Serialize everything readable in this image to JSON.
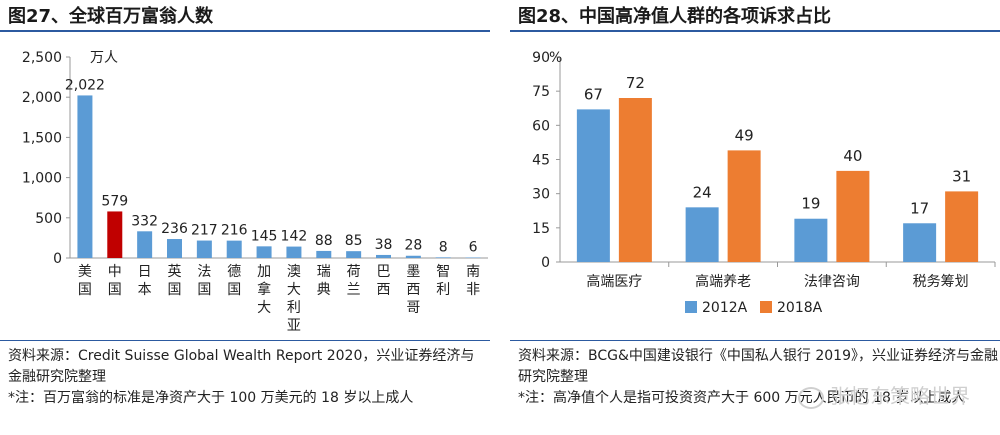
{
  "left": {
    "title": "图27、全球百万富翁人数",
    "chart_data": {
      "type": "bar",
      "unit_label": "万人",
      "categories": [
        "美国",
        "中国",
        "日本",
        "英国",
        "法国",
        "德国",
        "加拿大",
        "澳大利亚",
        "瑞典",
        "荷兰",
        "巴西",
        "墨西哥",
        "智利",
        "南非"
      ],
      "values": [
        2022,
        579,
        332,
        236,
        217,
        216,
        145,
        142,
        88,
        85,
        38,
        28,
        8,
        6
      ],
      "ylim": [
        0,
        2500
      ],
      "yticks": [
        "0",
        "500",
        "1,000",
        "1,500",
        "2,000",
        "2,500"
      ],
      "value_labels": [
        "2,022",
        "579",
        "332",
        "236",
        "217",
        "216",
        "145",
        "142",
        "88",
        "85",
        "38",
        "28",
        "8",
        "6"
      ],
      "colors": {
        "default": "#5b9bd5",
        "highlight": "#c00000"
      },
      "highlight_index": 1,
      "legend": "none",
      "grid": false
    },
    "source": "资料来源：Credit Suisse Global Wealth Report 2020，兴业证券经济与金融研究院整理",
    "note": "*注：百万富翁的标准是净资产大于 100 万美元的 18 岁以上成人"
  },
  "right": {
    "title": "图28、中国高净值人群的各项诉求占比",
    "chart_data": {
      "type": "bar",
      "unit_label": "%",
      "categories": [
        "高端医疗",
        "高端养老",
        "法律咨询",
        "税务筹划"
      ],
      "series": [
        {
          "name": "2012A",
          "values": [
            67,
            24,
            19,
            17
          ],
          "color": "#5b9bd5"
        },
        {
          "name": "2018A",
          "values": [
            72,
            49,
            40,
            31
          ],
          "color": "#ed7d31"
        }
      ],
      "ylim": [
        0,
        90
      ],
      "yticks": [
        "0",
        "15",
        "30",
        "45",
        "60",
        "75",
        "90"
      ],
      "legend": "bottom",
      "grid": false
    },
    "source": "资料来源：BCG&中国建设银行《中国私人银行 2019》，兴业证券经济与金融研究院整理",
    "note": "*注：高净值个人是指可投资资产大于 600 万元人民币的 18 岁以上成人"
  },
  "watermark": "张忆东策略世界"
}
